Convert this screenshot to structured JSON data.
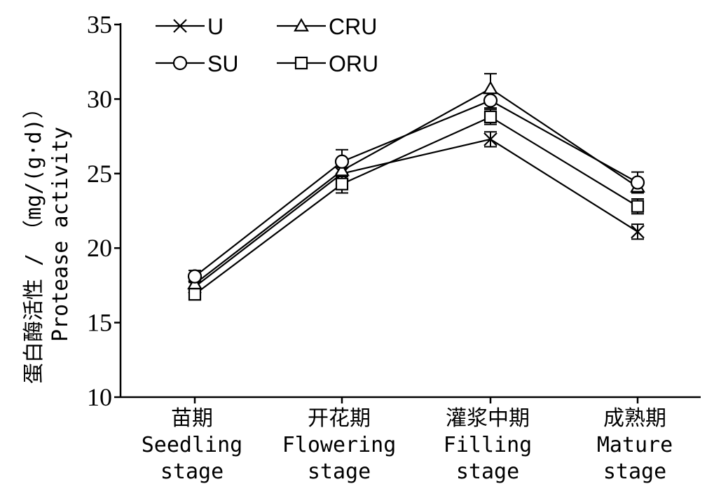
{
  "chart_data": {
    "type": "line",
    "title": "",
    "xlabel": "",
    "ylabel_zh": "蛋白酶活性 / （mg/(g·d)）",
    "ylabel_en": "Protease activity",
    "ylim": [
      10,
      35
    ],
    "yticks": [
      10,
      15,
      20,
      25,
      30,
      35
    ],
    "grid": false,
    "legend_position": "top-left",
    "categories": [
      {
        "zh": "苗期",
        "en1": "Seedling",
        "en2": "stage"
      },
      {
        "zh": "开花期",
        "en1": "Flowering",
        "en2": "stage"
      },
      {
        "zh": "灌浆中期",
        "en1": "Filling",
        "en2": "stage"
      },
      {
        "zh": "成熟期",
        "en1": "Mature",
        "en2": "stage"
      }
    ],
    "series": [
      {
        "name": "U",
        "marker": "x",
        "values": [
          17.4,
          25.0,
          27.3,
          21.1
        ],
        "errors": [
          0.3,
          0.4,
          0.5,
          0.5
        ]
      },
      {
        "name": "CRU",
        "marker": "triangle",
        "values": [
          17.6,
          25.2,
          30.7,
          24.1
        ],
        "errors": [
          0.3,
          0.4,
          1.0,
          0.4
        ]
      },
      {
        "name": "SU",
        "marker": "circle",
        "values": [
          18.1,
          25.8,
          29.9,
          24.4
        ],
        "errors": [
          0.4,
          0.8,
          0.5,
          0.7
        ]
      },
      {
        "name": "ORU",
        "marker": "square",
        "values": [
          16.9,
          24.3,
          28.8,
          22.8
        ],
        "errors": [
          0.3,
          0.6,
          0.5,
          0.5
        ]
      }
    ]
  }
}
